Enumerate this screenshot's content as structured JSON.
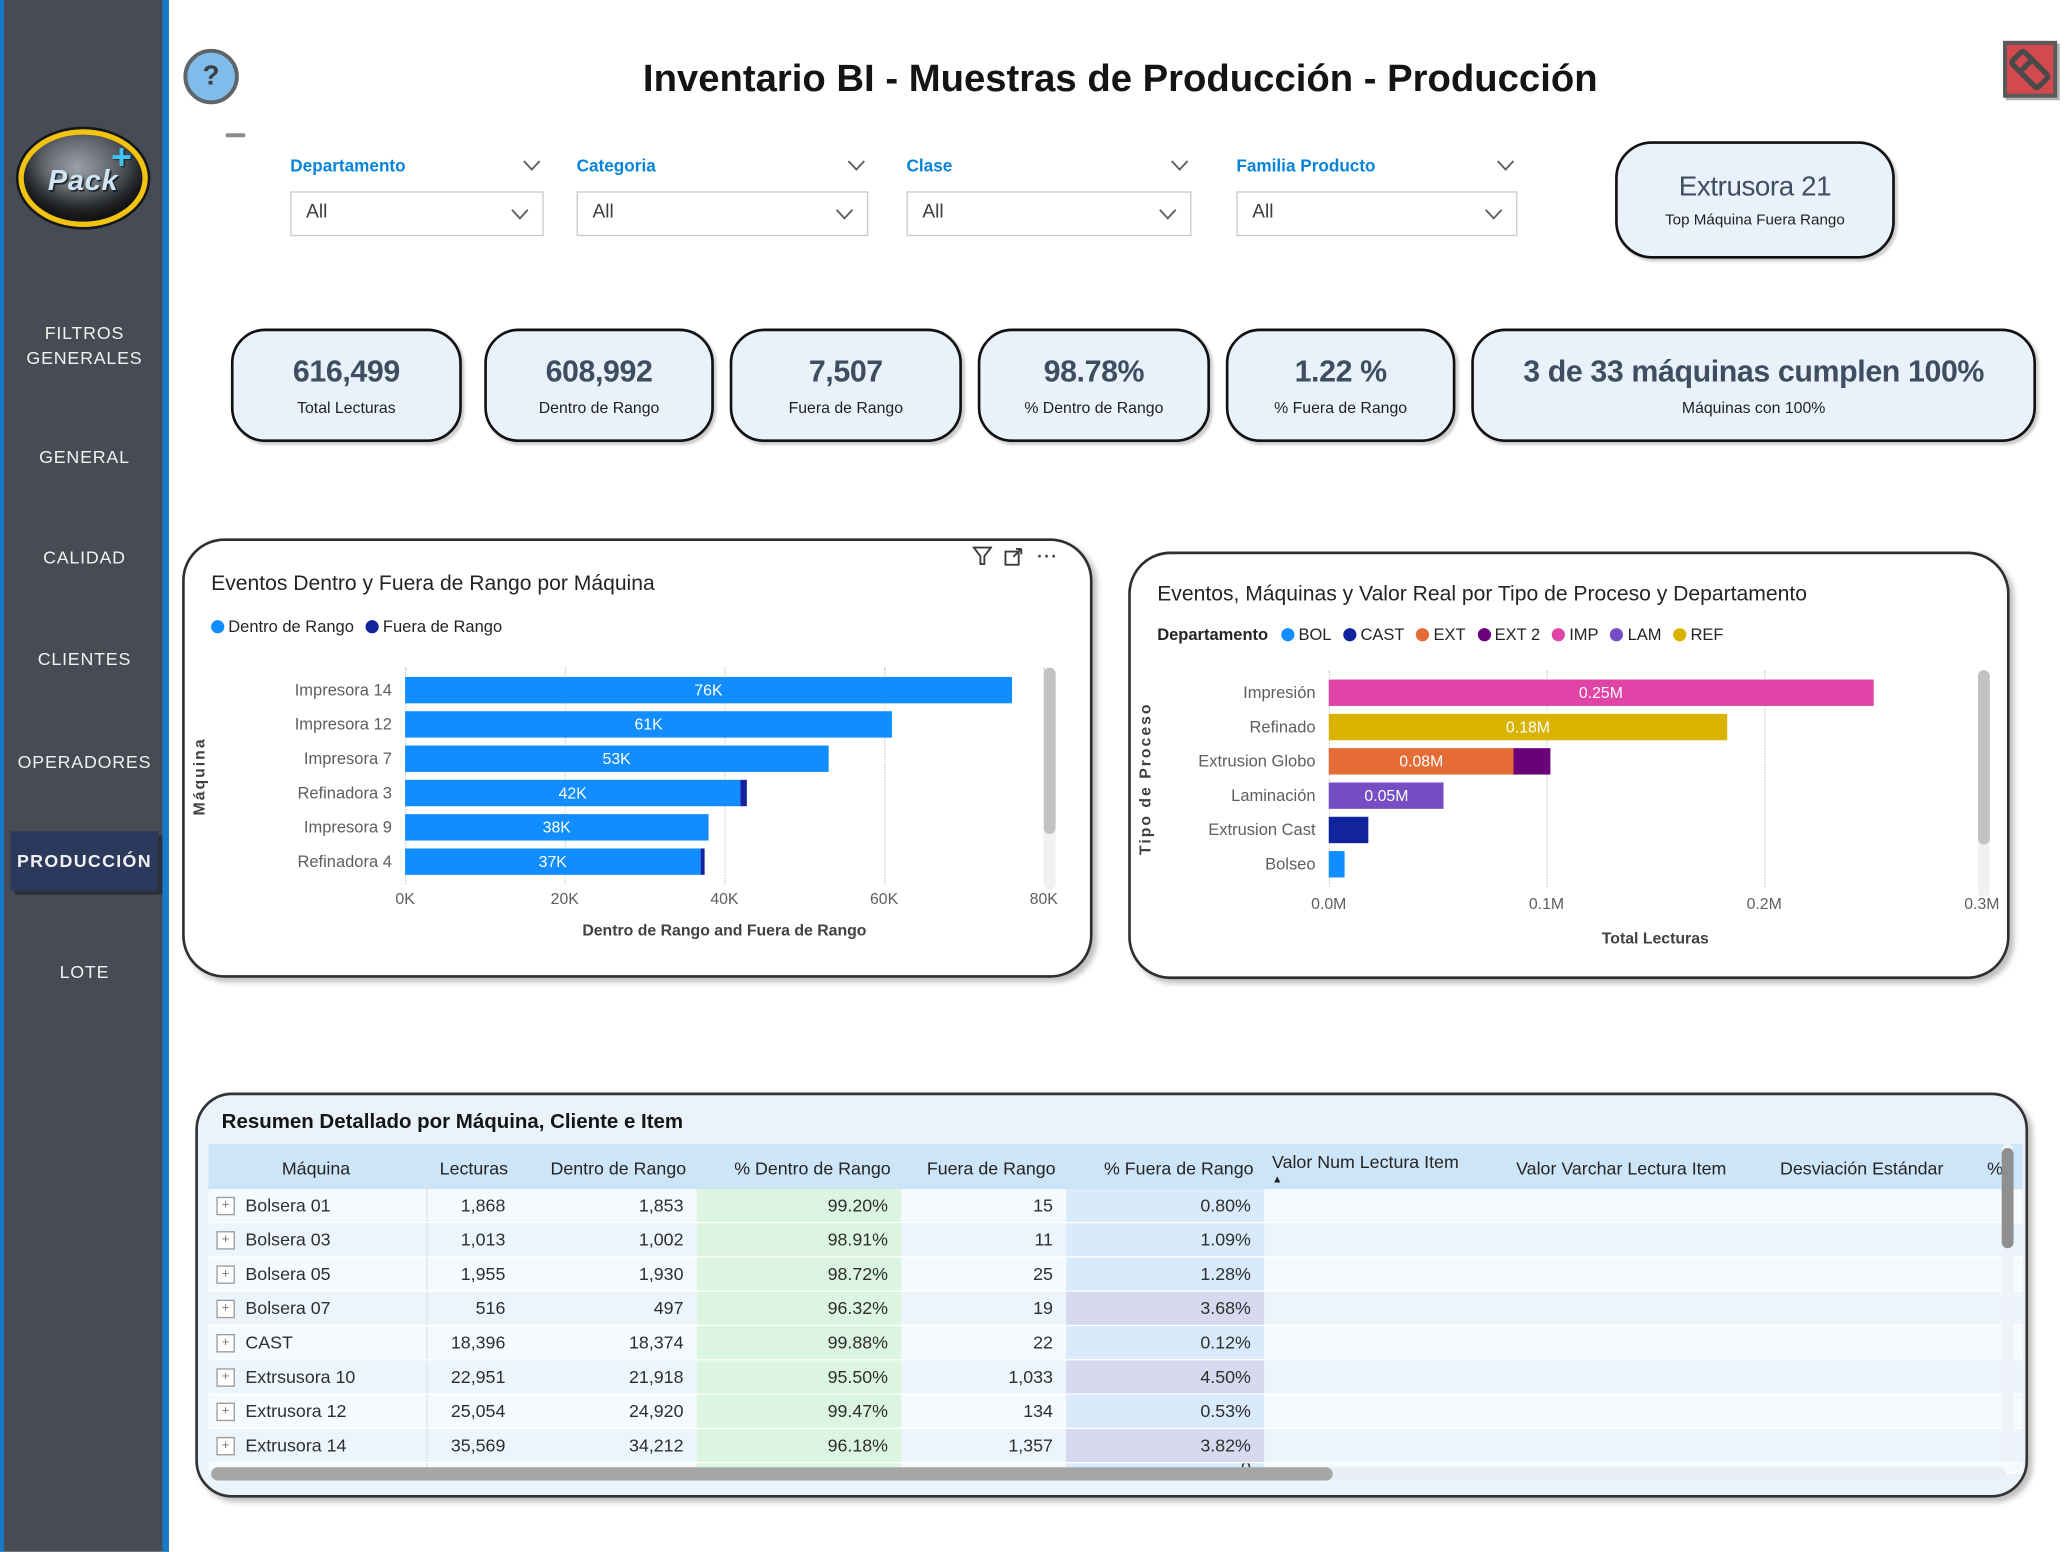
{
  "app": {
    "title": "Inventario BI - Muestras de Producción - Producción",
    "help_glyph": "?",
    "icons": {
      "help": "question-mark",
      "clear_filters": "eraser",
      "chart_toolbar": [
        "filter-funnel",
        "focus-mode",
        "more-options"
      ],
      "more_options_glyph": "···",
      "sort_ascending_glyph": "▲",
      "expander_glyph": "+"
    }
  },
  "sidebar": {
    "logo_text": "Pack",
    "logo_plus": "+",
    "items": [
      {
        "label": "FILTROS GENERALES",
        "selected": false
      },
      {
        "label": "GENERAL",
        "selected": false
      },
      {
        "label": "CALIDAD",
        "selected": false
      },
      {
        "label": "CLIENTES",
        "selected": false
      },
      {
        "label": "OPERADORES",
        "selected": false
      },
      {
        "label": "PRODUCCIÓN",
        "selected": true
      },
      {
        "label": "LOTE",
        "selected": false
      }
    ],
    "accent_color": "#1779C7",
    "background_color": "#464B54"
  },
  "filters": [
    {
      "label": "Departamento",
      "value": "All"
    },
    {
      "label": "Categoria",
      "value": "All"
    },
    {
      "label": "Clase",
      "value": "All"
    },
    {
      "label": "Familia Producto",
      "value": "All"
    }
  ],
  "top_machine": {
    "value": "Extrusora 21",
    "label": "Top Máquina Fuera Rango"
  },
  "kpis": [
    {
      "value": "616,499",
      "label": "Total Lecturas"
    },
    {
      "value": "608,992",
      "label": "Dentro de Rango"
    },
    {
      "value": "7,507",
      "label": "Fuera de Rango"
    },
    {
      "value": "98.78%",
      "label": "% Dentro de Rango"
    },
    {
      "value": "1.22 %",
      "label": "% Fuera de Rango"
    },
    {
      "value": "3 de 33 máquinas cumplen 100%",
      "label": "Máquinas con 100%"
    }
  ],
  "chart_data": [
    {
      "type": "bar",
      "orientation": "horizontal",
      "title": "Eventos Dentro y Fuera de Rango por Máquina",
      "legend": [
        {
          "name": "Dentro de Rango",
          "color": "#118DFF"
        },
        {
          "name": "Fuera de Rango",
          "color": "#12239E"
        }
      ],
      "categories": [
        "Impresora 14",
        "Impresora 12",
        "Impresora 7",
        "Refinadora 3",
        "Impresora 9",
        "Refinadora 4"
      ],
      "series": [
        {
          "name": "Dentro de Rango",
          "color": "#118DFF",
          "values": [
            76000,
            61000,
            53000,
            42000,
            38000,
            37000
          ],
          "labels": [
            "76K",
            "61K",
            "53K",
            "42K",
            "38K",
            "37K"
          ]
        },
        {
          "name": "Fuera de Rango",
          "color": "#12239E",
          "values": [
            0,
            0,
            0,
            800,
            0,
            600
          ],
          "labels": [
            "",
            "",
            "",
            "",
            "",
            ""
          ]
        }
      ],
      "xlabel": "Dentro de Rango and Fuera de Rango",
      "ylabel": "Máquina",
      "xlim": [
        0,
        80000
      ],
      "xticks": [
        {
          "label": "0K",
          "value": 0
        },
        {
          "label": "20K",
          "value": 20000
        },
        {
          "label": "40K",
          "value": 40000
        },
        {
          "label": "60K",
          "value": 60000
        },
        {
          "label": "80K",
          "value": 80000
        }
      ],
      "grid": "dotted-vertical"
    },
    {
      "type": "bar",
      "orientation": "horizontal",
      "stacked": true,
      "title": "Eventos, Máquinas y Valor Real por Tipo de Proceso y Departamento",
      "legend_title": "Departamento",
      "legend": [
        {
          "name": "BOL",
          "color": "#118DFF"
        },
        {
          "name": "CAST",
          "color": "#12239E"
        },
        {
          "name": "EXT",
          "color": "#E66C37"
        },
        {
          "name": "EXT 2",
          "color": "#6B007B"
        },
        {
          "name": "IMP",
          "color": "#E044A7"
        },
        {
          "name": "LAM",
          "color": "#744EC2"
        },
        {
          "name": "REF",
          "color": "#D9B300"
        }
      ],
      "categories": [
        "Impresión",
        "Refinado",
        "Extrusion Globo",
        "Laminación",
        "Extrusion Cast",
        "Bolseo"
      ],
      "series": [
        {
          "name": "IMP",
          "color": "#E044A7",
          "values": [
            250000,
            0,
            0,
            0,
            0,
            0
          ],
          "labels": [
            "0.25M",
            "",
            "",
            "",
            "",
            ""
          ]
        },
        {
          "name": "REF",
          "color": "#D9B300",
          "values": [
            0,
            183000,
            0,
            0,
            0,
            0
          ],
          "labels": [
            "",
            "0.18M",
            "",
            "",
            "",
            ""
          ]
        },
        {
          "name": "EXT",
          "color": "#E66C37",
          "values": [
            0,
            0,
            85000,
            0,
            0,
            0
          ],
          "labels": [
            "",
            "",
            "0.08M",
            "",
            "",
            ""
          ]
        },
        {
          "name": "EXT 2",
          "color": "#6B007B",
          "values": [
            0,
            0,
            17000,
            0,
            0,
            0
          ],
          "labels": [
            "",
            "",
            "",
            "",
            "",
            ""
          ]
        },
        {
          "name": "LAM",
          "color": "#744EC2",
          "values": [
            0,
            0,
            0,
            53000,
            0,
            0
          ],
          "labels": [
            "",
            "",
            "",
            "0.05M",
            "",
            ""
          ]
        },
        {
          "name": "CAST",
          "color": "#12239E",
          "values": [
            0,
            0,
            0,
            0,
            18000,
            0
          ],
          "labels": [
            "",
            "",
            "",
            "",
            "",
            ""
          ]
        },
        {
          "name": "BOL",
          "color": "#118DFF",
          "values": [
            0,
            0,
            0,
            0,
            0,
            7000
          ],
          "labels": [
            "",
            "",
            "",
            "",
            "",
            ""
          ]
        }
      ],
      "xlabel": "Total Lecturas",
      "ylabel": "Tipo de Proceso",
      "xlim": [
        0,
        300000
      ],
      "xticks": [
        {
          "label": "0.0M",
          "value": 0
        },
        {
          "label": "0.1M",
          "value": 100000
        },
        {
          "label": "0.2M",
          "value": 200000
        },
        {
          "label": "0.3M",
          "value": 300000
        }
      ],
      "grid": "dotted-vertical"
    }
  ],
  "table": {
    "title": "Resumen Detallado por Máquina, Cliente e Item",
    "columns": [
      {
        "label": "Máquina",
        "align": "center"
      },
      {
        "label": "Lecturas",
        "align": "right"
      },
      {
        "label": "Dentro de Rango",
        "align": "right"
      },
      {
        "label": "% Dentro de Rango",
        "align": "right"
      },
      {
        "label": "Fuera de Rango",
        "align": "right"
      },
      {
        "label": "% Fuera de Rango",
        "align": "right"
      },
      {
        "label": "Valor Num Lectura Item",
        "align": "left",
        "sort": "asc"
      },
      {
        "label": "Valor Varchar Lectura Item",
        "align": "left"
      },
      {
        "label": "Desviación Estándar",
        "align": "left"
      },
      {
        "label": "%",
        "align": "left"
      }
    ],
    "rows": [
      [
        "Bolsera 01",
        "1,868",
        "1,853",
        "99.20%",
        "15",
        "0.80%",
        "",
        "",
        "",
        ""
      ],
      [
        "Bolsera 03",
        "1,013",
        "1,002",
        "98.91%",
        "11",
        "1.09%",
        "",
        "",
        "",
        ""
      ],
      [
        "Bolsera 05",
        "1,955",
        "1,930",
        "98.72%",
        "25",
        "1.28%",
        "",
        "",
        "",
        ""
      ],
      [
        "Bolsera 07",
        "516",
        "497",
        "96.32%",
        "19",
        "3.68%",
        "",
        "",
        "",
        ""
      ],
      [
        "CAST",
        "18,396",
        "18,374",
        "99.88%",
        "22",
        "0.12%",
        "",
        "",
        "",
        ""
      ],
      [
        "Extrsusora 10",
        "22,951",
        "21,918",
        "95.50%",
        "1,033",
        "4.50%",
        "",
        "",
        "",
        ""
      ],
      [
        "Extrusora 12",
        "25,054",
        "24,920",
        "99.47%",
        "134",
        "0.53%",
        "",
        "",
        "",
        ""
      ],
      [
        "Extrusora 14",
        "35,569",
        "34,212",
        "96.18%",
        "1,357",
        "3.82%",
        "",
        "",
        "",
        ""
      ]
    ]
  }
}
